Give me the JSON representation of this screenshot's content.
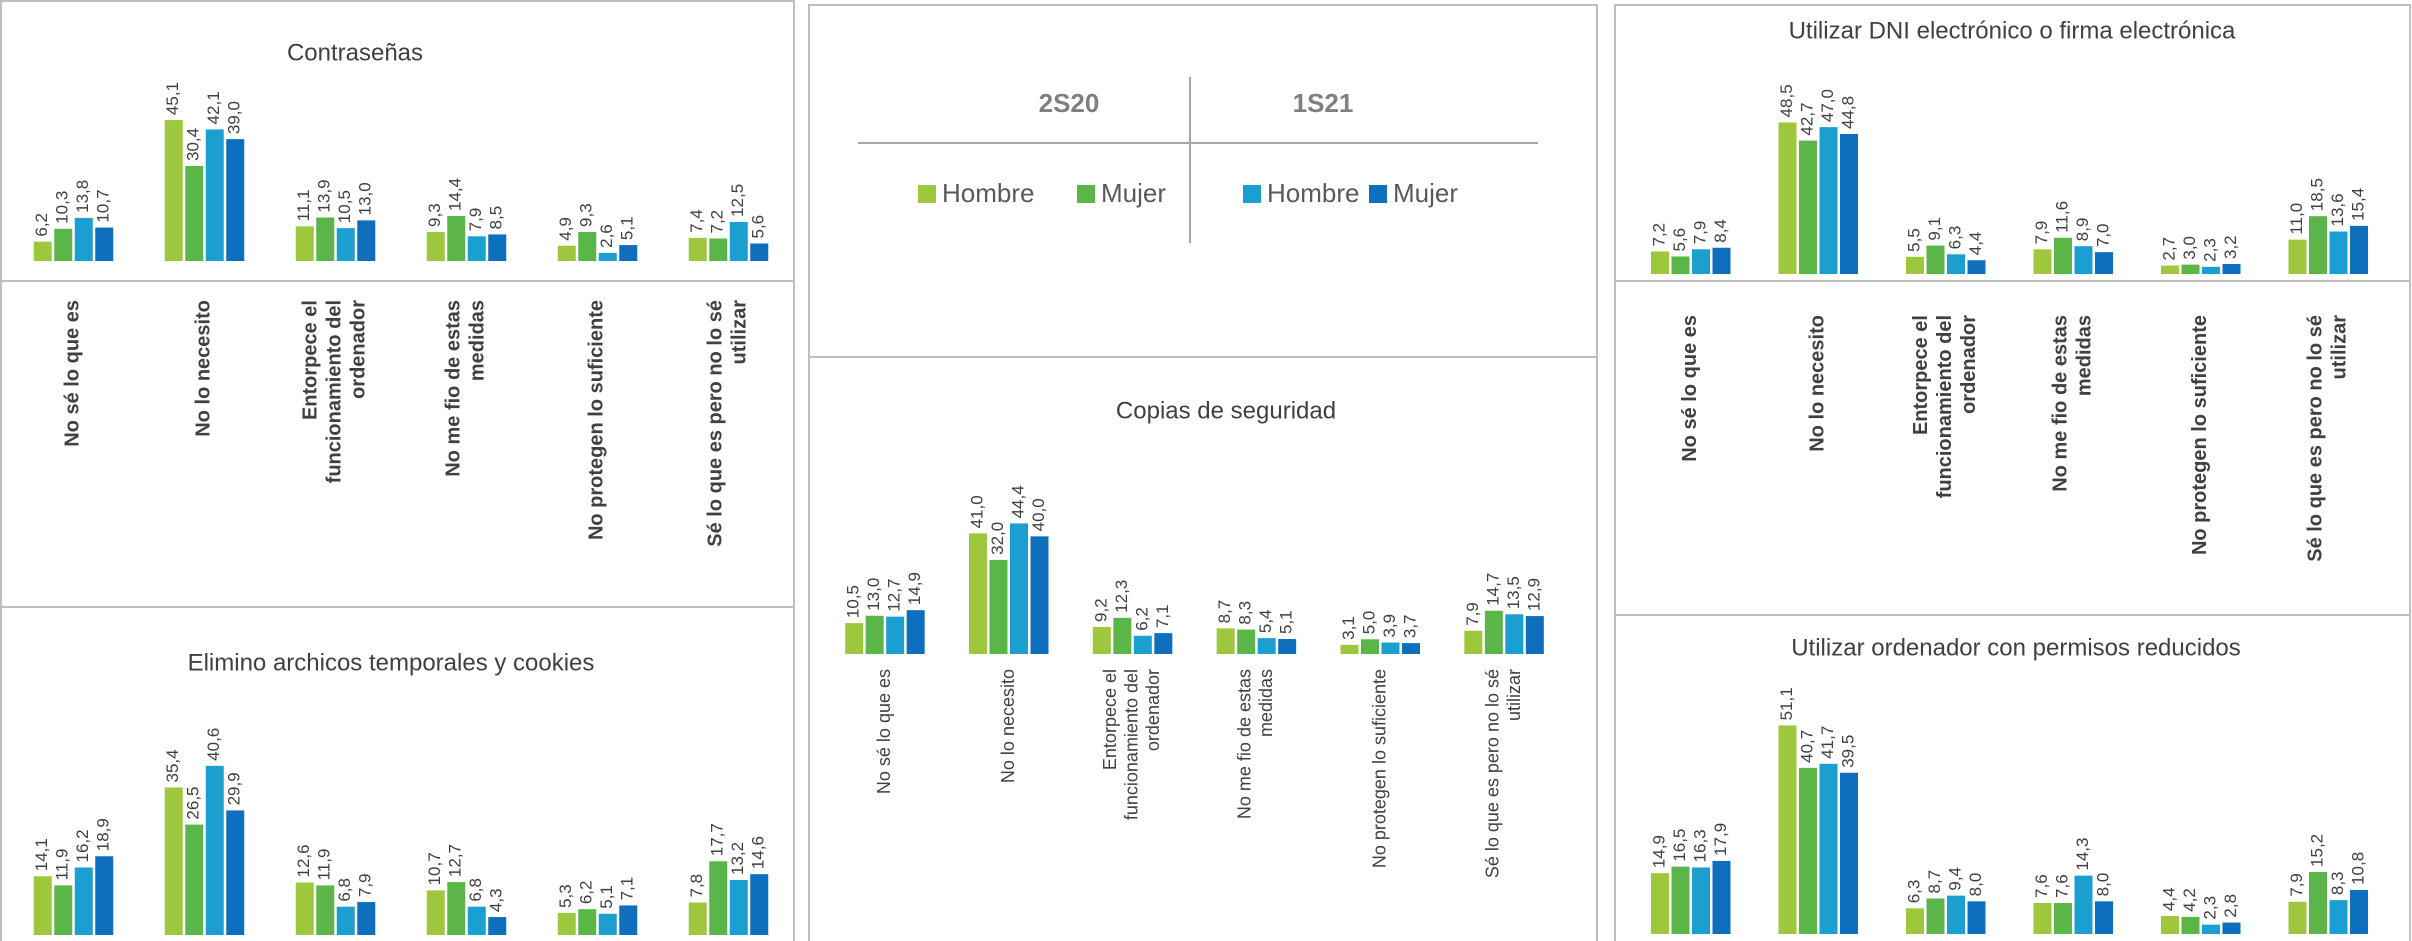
{
  "legend": {
    "groups": [
      "2S20",
      "1S21"
    ],
    "series": [
      {
        "name": "Hombre",
        "color": "#9dc73c"
      },
      {
        "name": "Mujer",
        "color": "#5cb548"
      },
      {
        "name": "Hombre",
        "color": "#1a9fd0"
      },
      {
        "name": "Mujer",
        "color": "#0f6fbf"
      }
    ]
  },
  "chart_data": [
    {
      "type": "bar",
      "title": "Contraseñas",
      "categories": [
        "No sé lo que es",
        "No lo necesito",
        "Entorpece el\nfuncionamiento del\nordenador",
        "No me fio de estas\nmedidas",
        "No protegen lo suficiente",
        "Sé lo que es pero no lo sé\nutilizar"
      ],
      "ylim": [
        0,
        64
      ],
      "series": [
        {
          "values": [
            6.2,
            45.1,
            11.1,
            9.3,
            4.9,
            7.4
          ],
          "value_labels": [
            "6,2",
            "45,1",
            "11,1",
            "9,3",
            "4,9",
            "7,4"
          ]
        },
        {
          "values": [
            10.3,
            30.4,
            13.9,
            14.4,
            9.3,
            7.2
          ],
          "value_labels": [
            "10,3",
            "30,4",
            "13,9",
            "14,4",
            "9,3",
            "7,2"
          ]
        },
        {
          "values": [
            13.8,
            42.1,
            10.5,
            7.9,
            2.6,
            12.5
          ],
          "value_labels": [
            "13,8",
            "42,1",
            "10,5",
            "7,9",
            "2,6",
            "12,5"
          ]
        },
        {
          "values": [
            10.7,
            39.0,
            13.0,
            8.5,
            5.1,
            5.6
          ],
          "value_labels": [
            "10,7",
            "39,0",
            "13,0",
            "8,5",
            "5,1",
            "5,6"
          ]
        }
      ]
    },
    {
      "type": "bar",
      "title": "Elimino archicos temporales y cookies",
      "ylim": [
        0,
        48
      ],
      "series": [
        {
          "values": [
            14.1,
            35.4,
            12.6,
            10.7,
            5.3,
            7.8
          ],
          "value_labels": [
            "14,1",
            "35,4",
            "12,6",
            "10,7",
            "5,3",
            "7,8"
          ]
        },
        {
          "values": [
            11.9,
            26.5,
            11.9,
            12.7,
            6.2,
            17.7
          ],
          "value_labels": [
            "11,9",
            "26,5",
            "11,9",
            "12,7",
            "6,2",
            "17,7"
          ]
        },
        {
          "values": [
            16.2,
            40.6,
            6.8,
            6.8,
            5.1,
            13.2
          ],
          "value_labels": [
            "16,2",
            "40,6",
            "6,8",
            "6,8",
            "5,1",
            "13,2"
          ]
        },
        {
          "values": [
            18.9,
            29.9,
            7.9,
            4.3,
            7.1,
            14.6
          ],
          "value_labels": [
            "18,9",
            "29,9",
            "7,9",
            "4,3",
            "7,1",
            "14,6"
          ]
        }
      ]
    },
    {
      "type": "bar",
      "title": "Copias de seguridad",
      "categories": [
        "No sé lo que es",
        "No lo necesito",
        "Entorpece el\nfuncionamiento del\nordenador",
        "No me fio de estas\nmedidas",
        "No protegen lo suficiente",
        "Sé lo que es pero no lo sé\nutilizar"
      ],
      "ylim": [
        0,
        68
      ],
      "series": [
        {
          "values": [
            10.5,
            41.0,
            9.2,
            8.7,
            3.1,
            7.9
          ],
          "value_labels": [
            "10,5",
            "41,0",
            "9,2",
            "8,7",
            "3,1",
            "7,9"
          ]
        },
        {
          "values": [
            13.0,
            32.0,
            12.3,
            8.3,
            5.0,
            14.7
          ],
          "value_labels": [
            "13,0",
            "32,0",
            "12,3",
            "8,3",
            "5,0",
            "14,7"
          ]
        },
        {
          "values": [
            12.7,
            44.4,
            6.2,
            5.4,
            3.9,
            13.5
          ],
          "value_labels": [
            "12,7",
            "44,4",
            "6,2",
            "5,4",
            "3,9",
            "13,5"
          ]
        },
        {
          "values": [
            14.9,
            40.0,
            7.1,
            5.1,
            3.7,
            12.9
          ],
          "value_labels": [
            "14,9",
            "40,0",
            "7,1",
            "5,1",
            "3,7",
            "12,9"
          ]
        }
      ]
    },
    {
      "type": "bar",
      "title": "Utilizar DNI electrónico o firma electrónica",
      "categories": [
        "No sé lo que es",
        "No lo necesito",
        "Entorpece el\nfuncionamiento del\nordenador",
        "No me fio de estas\nmedidas",
        "No protegen lo suficiente",
        "Sé lo que es pero no lo sé\nutilizar"
      ],
      "ylim": [
        0,
        64
      ],
      "series": [
        {
          "values": [
            7.2,
            48.5,
            5.5,
            7.9,
            2.7,
            11.0
          ],
          "value_labels": [
            "7,2",
            "48,5",
            "5,5",
            "7,9",
            "2,7",
            "11,0"
          ]
        },
        {
          "values": [
            5.6,
            42.7,
            9.1,
            11.6,
            3.0,
            18.5
          ],
          "value_labels": [
            "5,6",
            "42,7",
            "9,1",
            "11,6",
            "3,0",
            "18,5"
          ]
        },
        {
          "values": [
            7.9,
            47.0,
            6.3,
            8.9,
            2.3,
            13.6
          ],
          "value_labels": [
            "7,9",
            "47,0",
            "6,3",
            "8,9",
            "2,3",
            "13,6"
          ]
        },
        {
          "values": [
            8.4,
            44.8,
            4.4,
            7.0,
            3.2,
            15.4
          ],
          "value_labels": [
            "8,4",
            "44,8",
            "4,4",
            "7,0",
            "3,2",
            "15,4"
          ]
        }
      ]
    },
    {
      "type": "bar",
      "title": "Utilizar ordenador con permisos reducidos",
      "ylim": [
        0,
        49
      ],
      "series": [
        {
          "values": [
            14.9,
            51.1,
            6.3,
            7.6,
            4.4,
            7.9
          ],
          "value_labels": [
            "14,9",
            "51,1",
            "6,3",
            "7,6",
            "4,4",
            "7,9"
          ]
        },
        {
          "values": [
            16.5,
            40.7,
            8.7,
            7.6,
            4.2,
            15.2
          ],
          "value_labels": [
            "16,5",
            "40,7",
            "8,7",
            "7,6",
            "4,2",
            "15,2"
          ]
        },
        {
          "values": [
            16.3,
            41.7,
            9.4,
            14.3,
            2.3,
            8.3
          ],
          "value_labels": [
            "16,3",
            "41,7",
            "9,4",
            "14,3",
            "2,3",
            "8,3"
          ]
        },
        {
          "values": [
            17.9,
            39.5,
            8.0,
            8.0,
            2.8,
            10.8
          ],
          "value_labels": [
            "17,9",
            "39,5",
            "8,0",
            "8,0",
            "2,8",
            "10,8"
          ]
        }
      ]
    }
  ]
}
